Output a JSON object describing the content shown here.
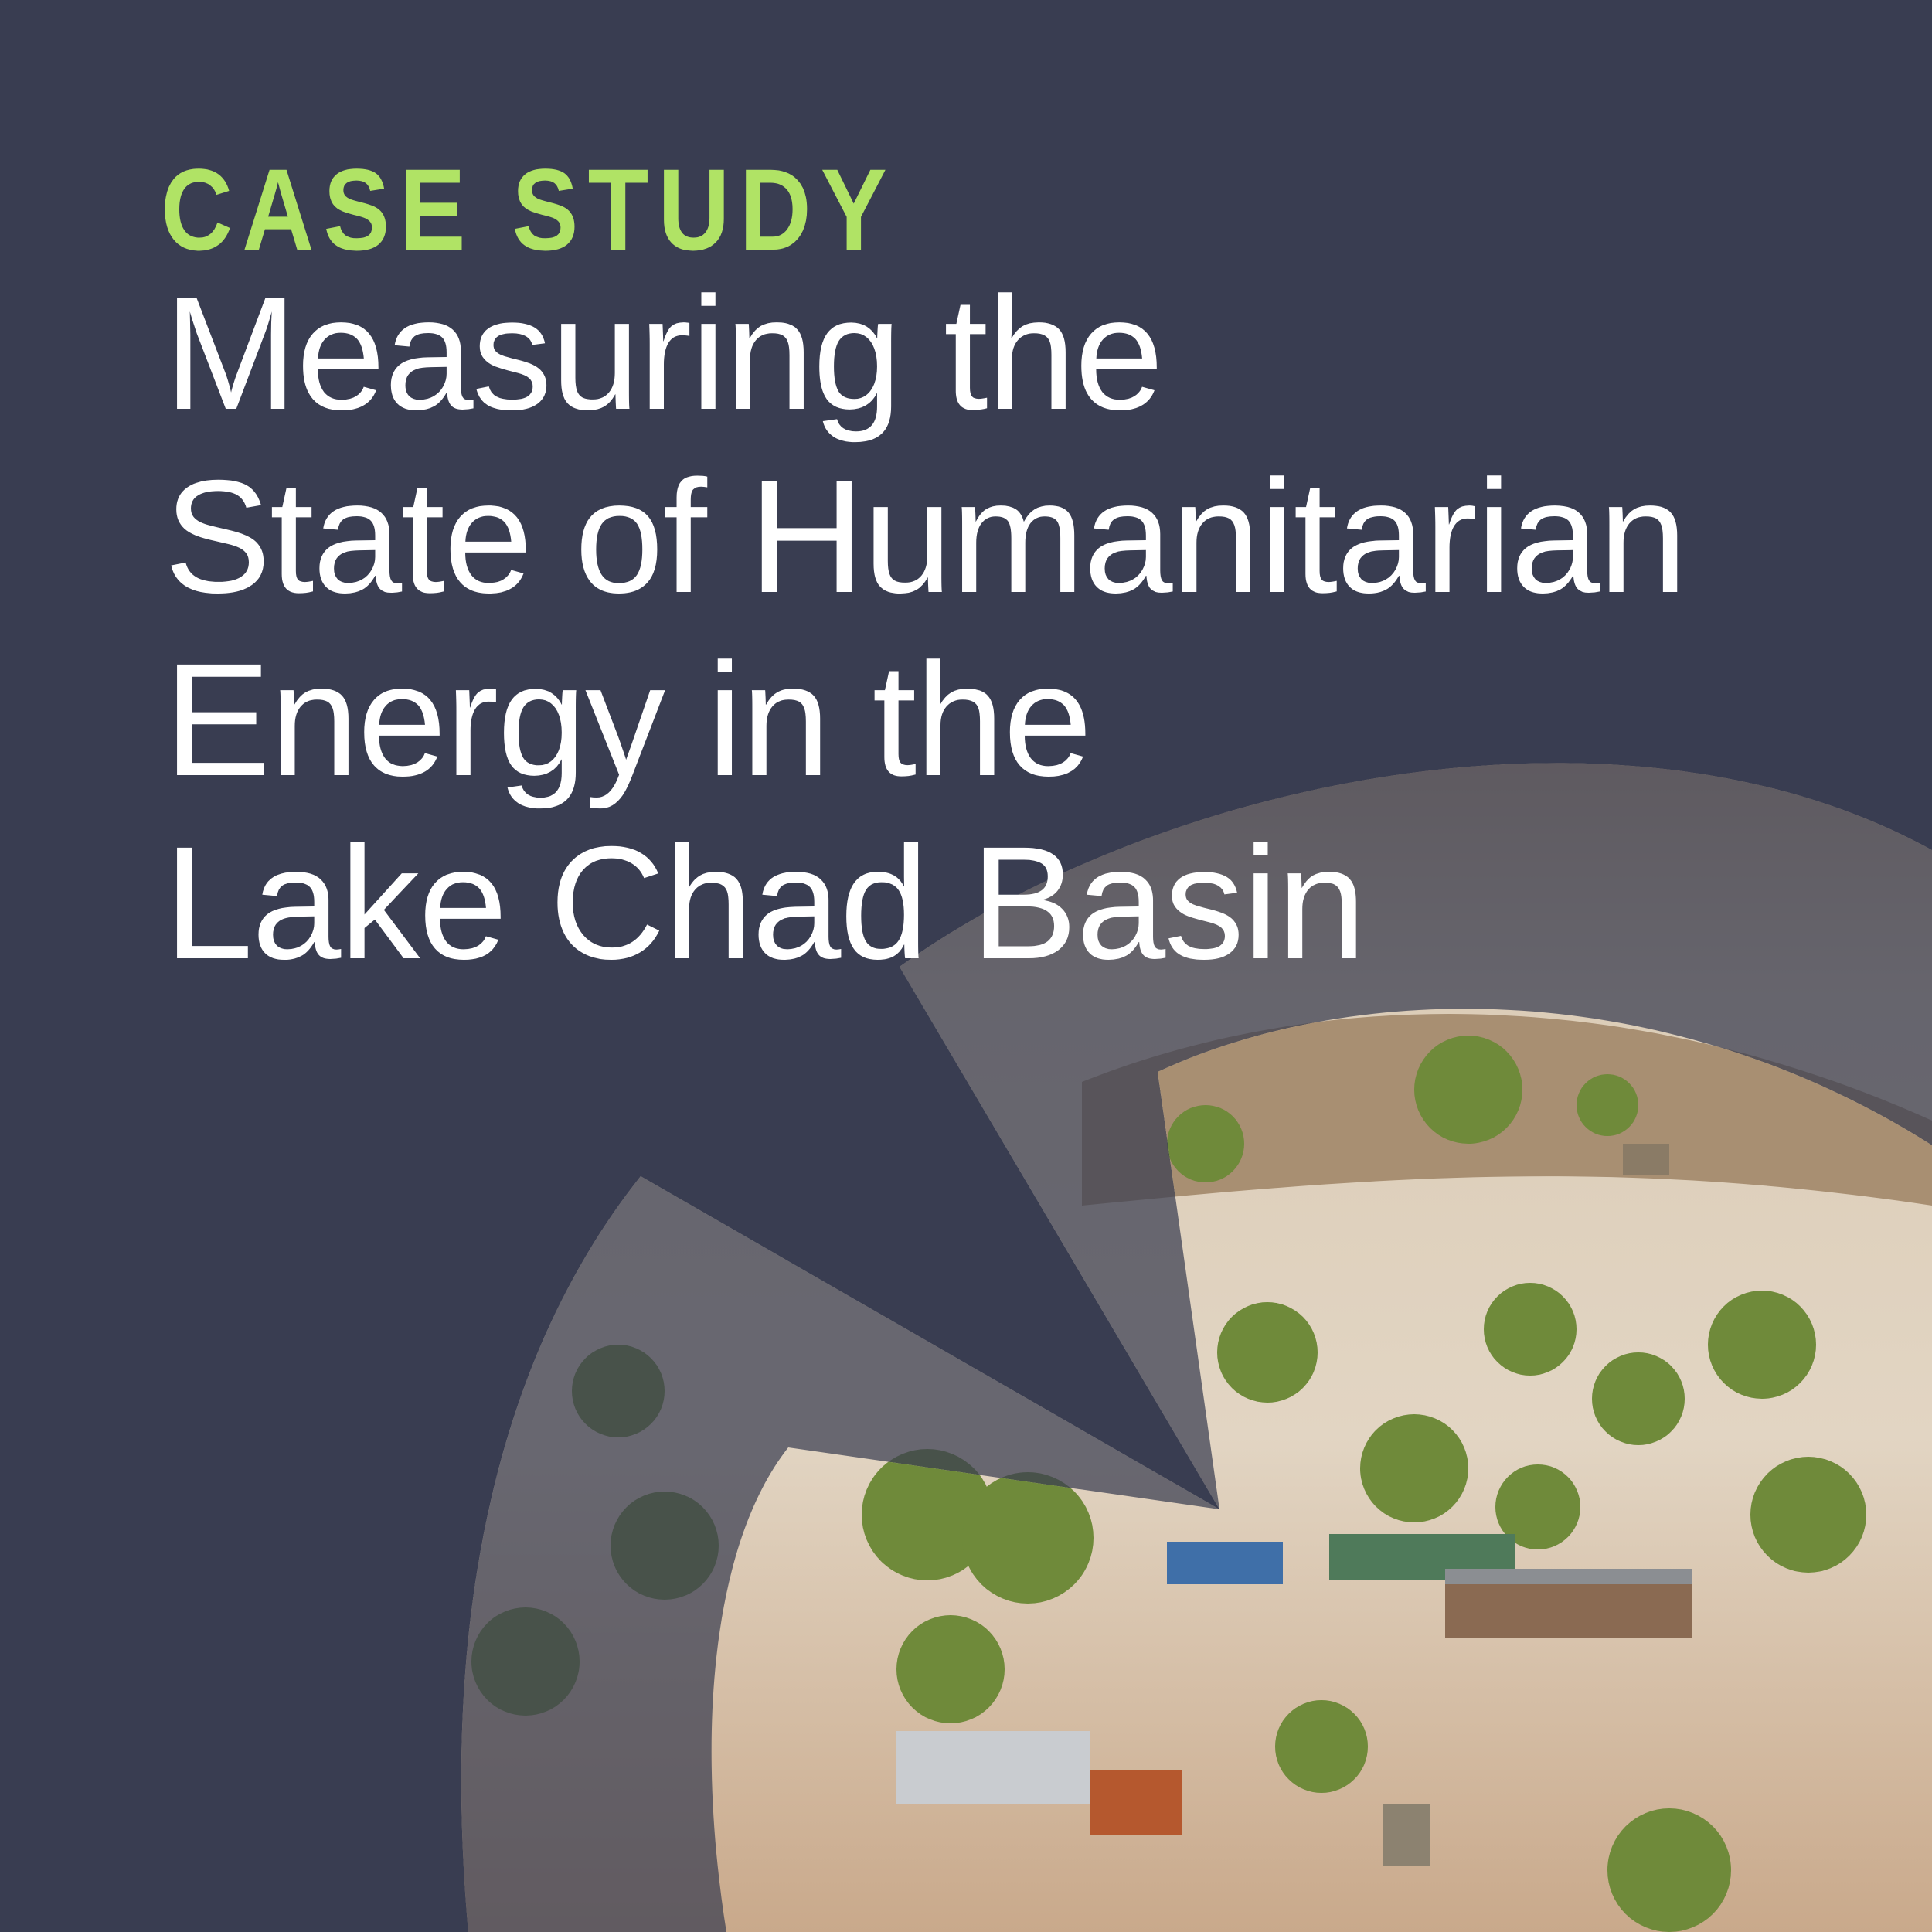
{
  "eyebrow": "CASE STUDY",
  "title_lines": [
    "Measuring the",
    "State of Humanitarian",
    "Energy in the",
    "Lake Chad Basin"
  ],
  "colors": {
    "background": "#393d51",
    "accent": "#b0e365",
    "title": "#ffffff"
  },
  "image": "aerial photo of a dry settlement with trees, huts and people, shown through a curved arrow-shaped cutout"
}
